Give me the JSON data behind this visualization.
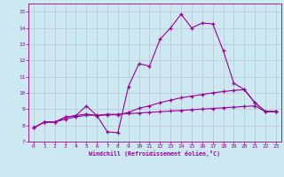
{
  "xlabel": "Windchill (Refroidissement éolien,°C)",
  "background_color": "#cce8f0",
  "line_color": "#990099",
  "grid_color": "#bbbbcc",
  "xlim": [
    -0.5,
    23.5
  ],
  "ylim": [
    7,
    15.5
  ],
  "xticks": [
    0,
    1,
    2,
    3,
    4,
    5,
    6,
    7,
    8,
    9,
    10,
    11,
    12,
    13,
    14,
    15,
    16,
    17,
    18,
    19,
    20,
    21,
    22,
    23
  ],
  "yticks": [
    7,
    8,
    9,
    10,
    11,
    12,
    13,
    14,
    15
  ],
  "line1": [
    7.85,
    8.2,
    8.2,
    8.5,
    8.6,
    9.2,
    8.6,
    7.6,
    7.55,
    10.4,
    11.8,
    11.65,
    13.3,
    14.0,
    14.85,
    14.0,
    14.3,
    14.25,
    12.6,
    10.6,
    10.2,
    9.4,
    8.85,
    8.85
  ],
  "line2": [
    7.85,
    8.2,
    8.2,
    8.5,
    8.6,
    8.7,
    8.6,
    8.65,
    8.65,
    8.8,
    9.05,
    9.2,
    9.4,
    9.55,
    9.7,
    9.8,
    9.9,
    10.0,
    10.08,
    10.15,
    10.2,
    9.4,
    8.85,
    8.85
  ],
  "line3": [
    7.85,
    8.2,
    8.2,
    8.38,
    8.52,
    8.62,
    8.62,
    8.68,
    8.68,
    8.72,
    8.76,
    8.8,
    8.84,
    8.88,
    8.92,
    8.96,
    9.0,
    9.04,
    9.08,
    9.12,
    9.16,
    9.2,
    8.85,
    8.85
  ]
}
